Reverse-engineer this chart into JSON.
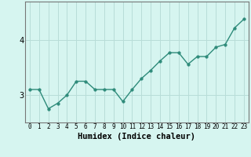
{
  "title": "",
  "xlabel": "Humidex (Indice chaleur)",
  "ylabel": "",
  "x": [
    0,
    1,
    2,
    3,
    4,
    5,
    6,
    7,
    8,
    9,
    10,
    11,
    12,
    13,
    14,
    15,
    16,
    17,
    18,
    19,
    20,
    21,
    22,
    23
  ],
  "y": [
    3.1,
    3.1,
    2.75,
    2.85,
    3.0,
    3.25,
    3.25,
    3.1,
    3.1,
    3.1,
    2.88,
    3.1,
    3.3,
    3.45,
    3.62,
    3.77,
    3.77,
    3.56,
    3.7,
    3.7,
    3.87,
    3.92,
    4.22,
    4.38
  ],
  "line_color": "#2e8b7a",
  "marker": "o",
  "markersize": 2.5,
  "linewidth": 1.0,
  "bg_color": "#d6f5f0",
  "grid_color": "#b8ddd8",
  "yticks": [
    3,
    4
  ],
  "ylim": [
    2.5,
    4.7
  ],
  "xlim": [
    -0.5,
    23.5
  ],
  "xtick_fontsize": 5.5,
  "ytick_fontsize": 7.5,
  "xlabel_fontsize": 7.5,
  "spine_color": "#777777"
}
